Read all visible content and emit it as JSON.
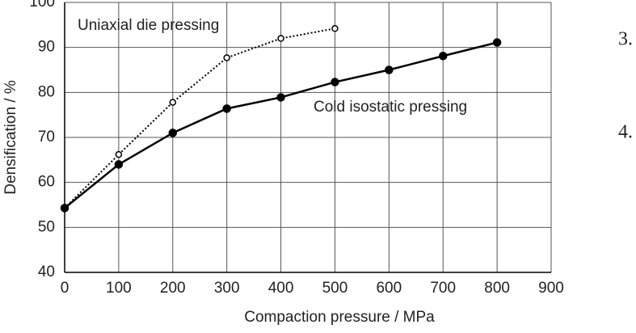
{
  "chart_data": {
    "type": "line",
    "x_label": "Compaction pressure / MPa",
    "y_label": "Densification / %",
    "xlim": [
      0,
      900
    ],
    "xticks": [
      0,
      100,
      200,
      300,
      400,
      500,
      600,
      700,
      800,
      900
    ],
    "ylim": [
      40,
      100
    ],
    "yticks": [
      40,
      50,
      60,
      70,
      80,
      90,
      100
    ],
    "grid": true,
    "series": [
      {
        "name": "Uniaxial die pressing",
        "color": "#000000",
        "line_style": "dotted",
        "marker": "open",
        "x": [
          0,
          100,
          200,
          300,
          400,
          500
        ],
        "values": [
          54.3,
          66.2,
          77.8,
          87.7,
          92.0,
          94.2
        ]
      },
      {
        "name": "Cold isostatic pressing",
        "color": "#000000",
        "line_style": "solid",
        "marker": "filled",
        "x": [
          0,
          100,
          200,
          300,
          400,
          500,
          600,
          700,
          800
        ],
        "values": [
          54.3,
          64.0,
          71.0,
          76.4,
          78.9,
          82.3,
          85.0,
          88.1,
          91.1
        ]
      }
    ]
  },
  "margin_numbers": [
    "3.",
    "4."
  ]
}
